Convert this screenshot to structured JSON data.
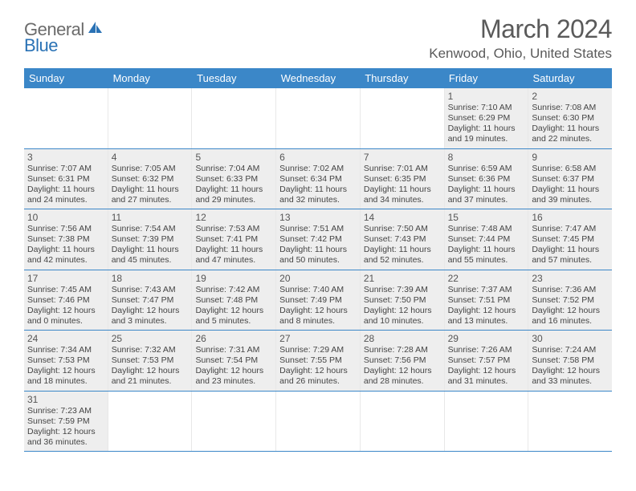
{
  "logo": {
    "text1": "General",
    "text2": "Blue",
    "text1_color": "#6b6b6b",
    "text2_color": "#2a72b5",
    "icon_color": "#2a72b5"
  },
  "header": {
    "month_title": "March 2024",
    "location": "Kenwood, Ohio, United States"
  },
  "styling": {
    "header_bg": "#3b87c8",
    "header_text": "#ffffff",
    "cell_bg": "#eeeeee",
    "border_color": "#3b87c8",
    "text_color": "#444444",
    "daynum_color": "#555555"
  },
  "weekdays": [
    "Sunday",
    "Monday",
    "Tuesday",
    "Wednesday",
    "Thursday",
    "Friday",
    "Saturday"
  ],
  "weeks": [
    [
      null,
      null,
      null,
      null,
      null,
      {
        "n": "1",
        "sr": "Sunrise: 7:10 AM",
        "ss": "Sunset: 6:29 PM",
        "d1": "Daylight: 11 hours",
        "d2": "and 19 minutes."
      },
      {
        "n": "2",
        "sr": "Sunrise: 7:08 AM",
        "ss": "Sunset: 6:30 PM",
        "d1": "Daylight: 11 hours",
        "d2": "and 22 minutes."
      }
    ],
    [
      {
        "n": "3",
        "sr": "Sunrise: 7:07 AM",
        "ss": "Sunset: 6:31 PM",
        "d1": "Daylight: 11 hours",
        "d2": "and 24 minutes."
      },
      {
        "n": "4",
        "sr": "Sunrise: 7:05 AM",
        "ss": "Sunset: 6:32 PM",
        "d1": "Daylight: 11 hours",
        "d2": "and 27 minutes."
      },
      {
        "n": "5",
        "sr": "Sunrise: 7:04 AM",
        "ss": "Sunset: 6:33 PM",
        "d1": "Daylight: 11 hours",
        "d2": "and 29 minutes."
      },
      {
        "n": "6",
        "sr": "Sunrise: 7:02 AM",
        "ss": "Sunset: 6:34 PM",
        "d1": "Daylight: 11 hours",
        "d2": "and 32 minutes."
      },
      {
        "n": "7",
        "sr": "Sunrise: 7:01 AM",
        "ss": "Sunset: 6:35 PM",
        "d1": "Daylight: 11 hours",
        "d2": "and 34 minutes."
      },
      {
        "n": "8",
        "sr": "Sunrise: 6:59 AM",
        "ss": "Sunset: 6:36 PM",
        "d1": "Daylight: 11 hours",
        "d2": "and 37 minutes."
      },
      {
        "n": "9",
        "sr": "Sunrise: 6:58 AM",
        "ss": "Sunset: 6:37 PM",
        "d1": "Daylight: 11 hours",
        "d2": "and 39 minutes."
      }
    ],
    [
      {
        "n": "10",
        "sr": "Sunrise: 7:56 AM",
        "ss": "Sunset: 7:38 PM",
        "d1": "Daylight: 11 hours",
        "d2": "and 42 minutes."
      },
      {
        "n": "11",
        "sr": "Sunrise: 7:54 AM",
        "ss": "Sunset: 7:39 PM",
        "d1": "Daylight: 11 hours",
        "d2": "and 45 minutes."
      },
      {
        "n": "12",
        "sr": "Sunrise: 7:53 AM",
        "ss": "Sunset: 7:41 PM",
        "d1": "Daylight: 11 hours",
        "d2": "and 47 minutes."
      },
      {
        "n": "13",
        "sr": "Sunrise: 7:51 AM",
        "ss": "Sunset: 7:42 PM",
        "d1": "Daylight: 11 hours",
        "d2": "and 50 minutes."
      },
      {
        "n": "14",
        "sr": "Sunrise: 7:50 AM",
        "ss": "Sunset: 7:43 PM",
        "d1": "Daylight: 11 hours",
        "d2": "and 52 minutes."
      },
      {
        "n": "15",
        "sr": "Sunrise: 7:48 AM",
        "ss": "Sunset: 7:44 PM",
        "d1": "Daylight: 11 hours",
        "d2": "and 55 minutes."
      },
      {
        "n": "16",
        "sr": "Sunrise: 7:47 AM",
        "ss": "Sunset: 7:45 PM",
        "d1": "Daylight: 11 hours",
        "d2": "and 57 minutes."
      }
    ],
    [
      {
        "n": "17",
        "sr": "Sunrise: 7:45 AM",
        "ss": "Sunset: 7:46 PM",
        "d1": "Daylight: 12 hours",
        "d2": "and 0 minutes."
      },
      {
        "n": "18",
        "sr": "Sunrise: 7:43 AM",
        "ss": "Sunset: 7:47 PM",
        "d1": "Daylight: 12 hours",
        "d2": "and 3 minutes."
      },
      {
        "n": "19",
        "sr": "Sunrise: 7:42 AM",
        "ss": "Sunset: 7:48 PM",
        "d1": "Daylight: 12 hours",
        "d2": "and 5 minutes."
      },
      {
        "n": "20",
        "sr": "Sunrise: 7:40 AM",
        "ss": "Sunset: 7:49 PM",
        "d1": "Daylight: 12 hours",
        "d2": "and 8 minutes."
      },
      {
        "n": "21",
        "sr": "Sunrise: 7:39 AM",
        "ss": "Sunset: 7:50 PM",
        "d1": "Daylight: 12 hours",
        "d2": "and 10 minutes."
      },
      {
        "n": "22",
        "sr": "Sunrise: 7:37 AM",
        "ss": "Sunset: 7:51 PM",
        "d1": "Daylight: 12 hours",
        "d2": "and 13 minutes."
      },
      {
        "n": "23",
        "sr": "Sunrise: 7:36 AM",
        "ss": "Sunset: 7:52 PM",
        "d1": "Daylight: 12 hours",
        "d2": "and 16 minutes."
      }
    ],
    [
      {
        "n": "24",
        "sr": "Sunrise: 7:34 AM",
        "ss": "Sunset: 7:53 PM",
        "d1": "Daylight: 12 hours",
        "d2": "and 18 minutes."
      },
      {
        "n": "25",
        "sr": "Sunrise: 7:32 AM",
        "ss": "Sunset: 7:53 PM",
        "d1": "Daylight: 12 hours",
        "d2": "and 21 minutes."
      },
      {
        "n": "26",
        "sr": "Sunrise: 7:31 AM",
        "ss": "Sunset: 7:54 PM",
        "d1": "Daylight: 12 hours",
        "d2": "and 23 minutes."
      },
      {
        "n": "27",
        "sr": "Sunrise: 7:29 AM",
        "ss": "Sunset: 7:55 PM",
        "d1": "Daylight: 12 hours",
        "d2": "and 26 minutes."
      },
      {
        "n": "28",
        "sr": "Sunrise: 7:28 AM",
        "ss": "Sunset: 7:56 PM",
        "d1": "Daylight: 12 hours",
        "d2": "and 28 minutes."
      },
      {
        "n": "29",
        "sr": "Sunrise: 7:26 AM",
        "ss": "Sunset: 7:57 PM",
        "d1": "Daylight: 12 hours",
        "d2": "and 31 minutes."
      },
      {
        "n": "30",
        "sr": "Sunrise: 7:24 AM",
        "ss": "Sunset: 7:58 PM",
        "d1": "Daylight: 12 hours",
        "d2": "and 33 minutes."
      }
    ],
    [
      {
        "n": "31",
        "sr": "Sunrise: 7:23 AM",
        "ss": "Sunset: 7:59 PM",
        "d1": "Daylight: 12 hours",
        "d2": "and 36 minutes."
      },
      null,
      null,
      null,
      null,
      null,
      null
    ]
  ]
}
